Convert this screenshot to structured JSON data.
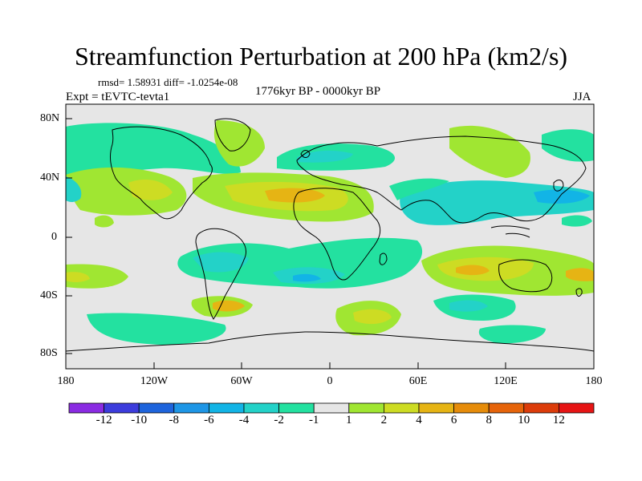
{
  "title": "Streamfunction Perturbation at 200 hPa (km2/s)",
  "stats": "rmsd= 1.58931 diff= -1.0254e-08",
  "subtitle": "1776kyr BP - 0000kyr BP",
  "experiment": "Expt = tEVTC-tevta1",
  "season": "JJA",
  "lat_ticks": [
    "80N",
    "40N",
    "0",
    "40S",
    "80S"
  ],
  "lon_ticks": [
    "180",
    "120W",
    "60W",
    "0",
    "60E",
    "120E",
    "180"
  ],
  "colorbar": {
    "labels": [
      "-12",
      "-10",
      "-8",
      "-6",
      "-4",
      "-2",
      "-1",
      "1",
      "2",
      "4",
      "6",
      "8",
      "10",
      "12"
    ],
    "colors": [
      "#8a2be2",
      "#3c3cdc",
      "#1e64dc",
      "#1e96e6",
      "#12b4e6",
      "#23d2c8",
      "#23e1a0",
      "#e6e6e6",
      "#a0e632",
      "#cddc23",
      "#e6b414",
      "#e68c0a",
      "#e6640a",
      "#dc3c0a",
      "#e61414"
    ]
  }
}
